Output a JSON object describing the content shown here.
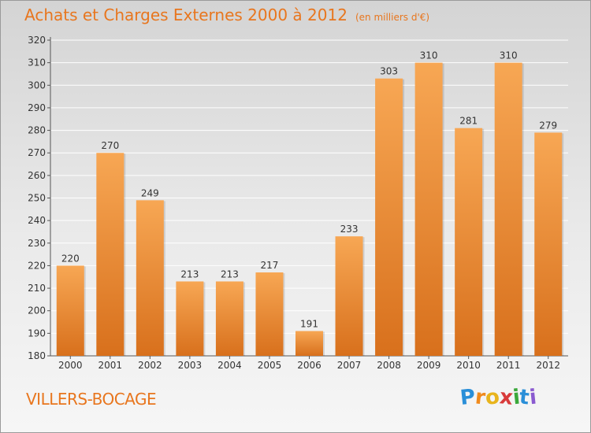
{
  "title": "Achats et Charges Externes 2000 à 2012",
  "unit_label": "(en milliers d'€)",
  "town": "VILLERS-BOCAGE",
  "brand": {
    "letters": [
      "P",
      "r",
      "o",
      "x",
      "i",
      "t",
      "i"
    ],
    "colors": [
      "#2a8fd8",
      "#f08a1c",
      "#e8b41c",
      "#d83a3a",
      "#3aa83a",
      "#2a8fd8",
      "#8a5ad0"
    ]
  },
  "colors": {
    "bar_light": "#f7a754",
    "bar_dark": "#d8701c",
    "text": "#333333",
    "accent": "#e8761e"
  },
  "chart_data": {
    "type": "bar",
    "categories": [
      "2000",
      "2001",
      "2002",
      "2003",
      "2004",
      "2005",
      "2006",
      "2007",
      "2008",
      "2009",
      "2010",
      "2011",
      "2012"
    ],
    "values": [
      220,
      270,
      249,
      213,
      213,
      217,
      191,
      233,
      303,
      310,
      281,
      310,
      279
    ],
    "ylim": [
      180,
      320
    ],
    "yticks": [
      180,
      190,
      200,
      210,
      220,
      230,
      240,
      250,
      260,
      270,
      280,
      290,
      300,
      310,
      320
    ],
    "grid": true
  }
}
